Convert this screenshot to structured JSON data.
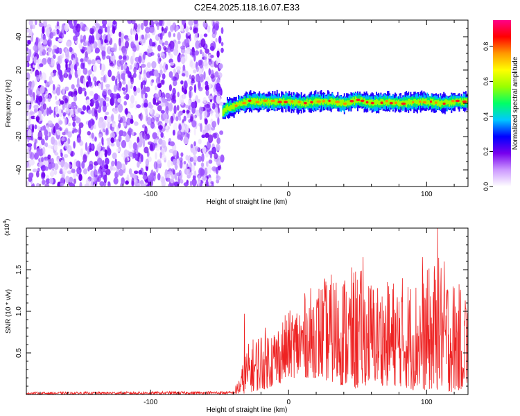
{
  "title": "C2E4.2025.118.16.07.E33",
  "chart_data": [
    {
      "type": "heatmap",
      "xlabel": "Height of straight line (km)",
      "ylabel": "Frequency (Hz)",
      "xlim": [
        -190,
        130
      ],
      "ylim": [
        -50,
        50
      ],
      "x_ticks": [
        -100,
        0,
        100
      ],
      "x_tick_labels": [
        "-100",
        "0",
        "100"
      ],
      "y_ticks": [
        -40,
        -20,
        0,
        20,
        40
      ],
      "y_tick_labels": [
        "-40",
        "-20",
        "0",
        "20",
        "40"
      ],
      "colorbar": {
        "label": "Normalized spectral amplitude",
        "range": [
          0,
          0.95
        ],
        "ticks": [
          0.0,
          0.2,
          0.4,
          0.6,
          0.8
        ],
        "tick_labels": [
          "0.0",
          "0.2",
          "0.4",
          "0.6",
          "0.8"
        ],
        "colors": [
          "#ffffff",
          "#cc99ff",
          "#7700ee",
          "#0000ff",
          "#00c8ff",
          "#00ff66",
          "#99ff00",
          "#ffff00",
          "#ff9900",
          "#ff0000",
          "#ff0088"
        ]
      },
      "noise_region_x": [
        -190,
        -48
      ],
      "signal_region_x": [
        -48,
        130
      ],
      "signal_center_hz": [
        [
          -48,
          -5
        ],
        [
          -45,
          -3
        ],
        [
          -40,
          -2
        ],
        [
          -35,
          0
        ],
        [
          -30,
          1
        ],
        [
          -20,
          1
        ],
        [
          -10,
          1
        ],
        [
          0,
          1
        ],
        [
          10,
          0
        ],
        [
          20,
          1
        ],
        [
          30,
          1
        ],
        [
          40,
          0
        ],
        [
          50,
          2
        ],
        [
          60,
          0
        ],
        [
          70,
          1
        ],
        [
          80,
          0
        ],
        [
          90,
          1
        ],
        [
          100,
          1
        ],
        [
          110,
          0
        ],
        [
          120,
          1
        ],
        [
          130,
          1
        ]
      ],
      "signal_width_hz": 5
    },
    {
      "type": "line",
      "xlabel": "Height of straight line (km)",
      "ylabel": "SNR (10 * v/v)",
      "multiplier_label": "(x10",
      "multiplier_exponent": "4",
      "multiplier_close": ")",
      "xlim": [
        -190,
        130
      ],
      "ylim": [
        0,
        2.0
      ],
      "x_ticks": [
        -100,
        0,
        100
      ],
      "x_tick_labels": [
        "-100",
        "0",
        "100"
      ],
      "y_ticks": [
        0.5,
        1.0,
        1.5
      ],
      "y_tick_labels": [
        "0.5",
        "1.0",
        "1.5"
      ],
      "series": [
        {
          "color": "#ee2222",
          "envelope": [
            {
              "x": -190,
              "lo": 0.0,
              "hi": 0.03
            },
            {
              "x": -40,
              "lo": 0.0,
              "hi": 0.04
            },
            {
              "x": -35,
              "lo": 0.0,
              "hi": 0.25
            },
            {
              "x": -30,
              "lo": 0.02,
              "hi": 0.6
            },
            {
              "x": -20,
              "lo": 0.05,
              "hi": 0.8
            },
            {
              "x": -10,
              "lo": 0.1,
              "hi": 0.85
            },
            {
              "x": 0,
              "lo": 0.2,
              "hi": 1.0
            },
            {
              "x": 10,
              "lo": 0.2,
              "hi": 1.2
            },
            {
              "x": 20,
              "lo": 0.2,
              "hi": 1.35
            },
            {
              "x": 30,
              "lo": 0.15,
              "hi": 1.45
            },
            {
              "x": 40,
              "lo": 0.1,
              "hi": 1.5
            },
            {
              "x": 50,
              "lo": 0.05,
              "hi": 1.55
            },
            {
              "x": 60,
              "lo": 0.15,
              "hi": 1.4
            },
            {
              "x": 70,
              "lo": 0.1,
              "hi": 1.35
            },
            {
              "x": 80,
              "lo": 0.1,
              "hi": 1.45
            },
            {
              "x": 90,
              "lo": 0.05,
              "hi": 1.4
            },
            {
              "x": 100,
              "lo": 0.05,
              "hi": 1.5
            },
            {
              "x": 110,
              "lo": 0.05,
              "hi": 1.7
            },
            {
              "x": 120,
              "lo": 0.02,
              "hi": 1.4
            },
            {
              "x": 130,
              "lo": 0.1,
              "hi": 1.2
            }
          ],
          "peaks": [
            {
              "x": -32,
              "y": 0.97
            },
            {
              "x": 54,
              "y": 1.65
            },
            {
              "x": 97,
              "y": 1.65
            },
            {
              "x": 108,
              "y": 2.0
            },
            {
              "x": 128,
              "y": 1.13
            }
          ]
        }
      ]
    }
  ]
}
